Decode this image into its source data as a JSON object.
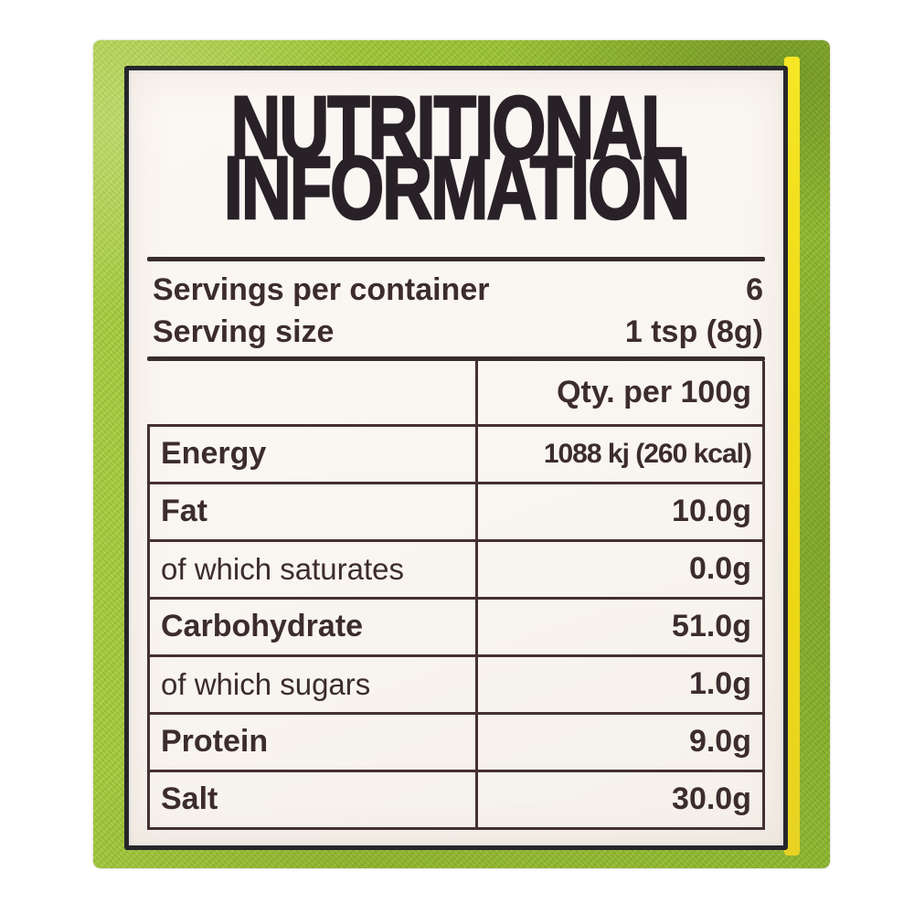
{
  "label": {
    "title_line1": "NUTRITIONAL",
    "title_line2": "INFORMATION",
    "serving_rows": [
      {
        "label": "Servings per container",
        "value": "6"
      },
      {
        "label": "Serving size",
        "value": "1 tsp (8g)"
      }
    ],
    "table": {
      "column_header": "Qty. per 100g",
      "rows": [
        {
          "label": "Energy",
          "value": "1088 kj (260 kcal)"
        },
        {
          "label": "Fat",
          "value": "10.0g"
        },
        {
          "label": "of which saturates",
          "value": "0.0g"
        },
        {
          "label": "Carbohydrate",
          "value": "51.0g"
        },
        {
          "label": "of which sugars",
          "value": "1.0g"
        },
        {
          "label": "Protein",
          "value": "9.0g"
        },
        {
          "label": "Salt",
          "value": "30.0g"
        }
      ]
    }
  },
  "colors": {
    "package_green": "#9cc432",
    "stripe_yellow": "#f0dd1c",
    "label_background": "#f9f5f0",
    "ink": "#35292b"
  }
}
